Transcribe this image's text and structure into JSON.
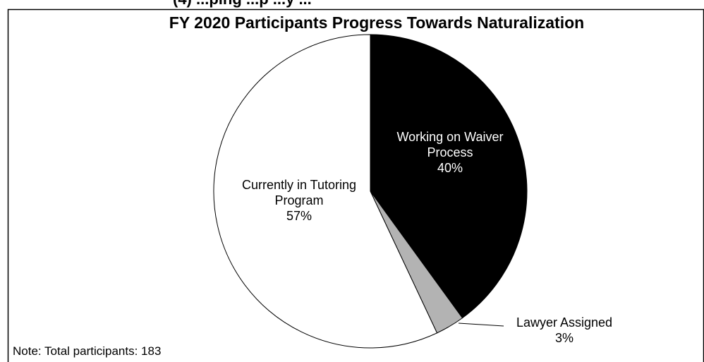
{
  "chart_data": {
    "type": "pie",
    "title": "FY 2020 Participants Progress Towards Naturalization",
    "slices": [
      {
        "label_lines": [
          "Working on Waiver",
          "Process"
        ],
        "percent_label": "40%",
        "value": 40,
        "color": "#000000",
        "label_color": "#ffffff"
      },
      {
        "label_lines": [
          "Lawyer Assigned"
        ],
        "percent_label": "3%",
        "value": 3,
        "color": "#b3b3b3",
        "label_color": "#000000"
      },
      {
        "label_lines": [
          "Currently in Tutoring",
          "Program"
        ],
        "percent_label": "57%",
        "value": 57,
        "color": "#ffffff",
        "label_color": "#000000"
      }
    ],
    "start_angle": "12 o'clock",
    "direction": "clockwise",
    "legend": "none",
    "note": "Note: Total participants: 183",
    "truncated_header": "(4) ...ping ...p ...y ..."
  }
}
